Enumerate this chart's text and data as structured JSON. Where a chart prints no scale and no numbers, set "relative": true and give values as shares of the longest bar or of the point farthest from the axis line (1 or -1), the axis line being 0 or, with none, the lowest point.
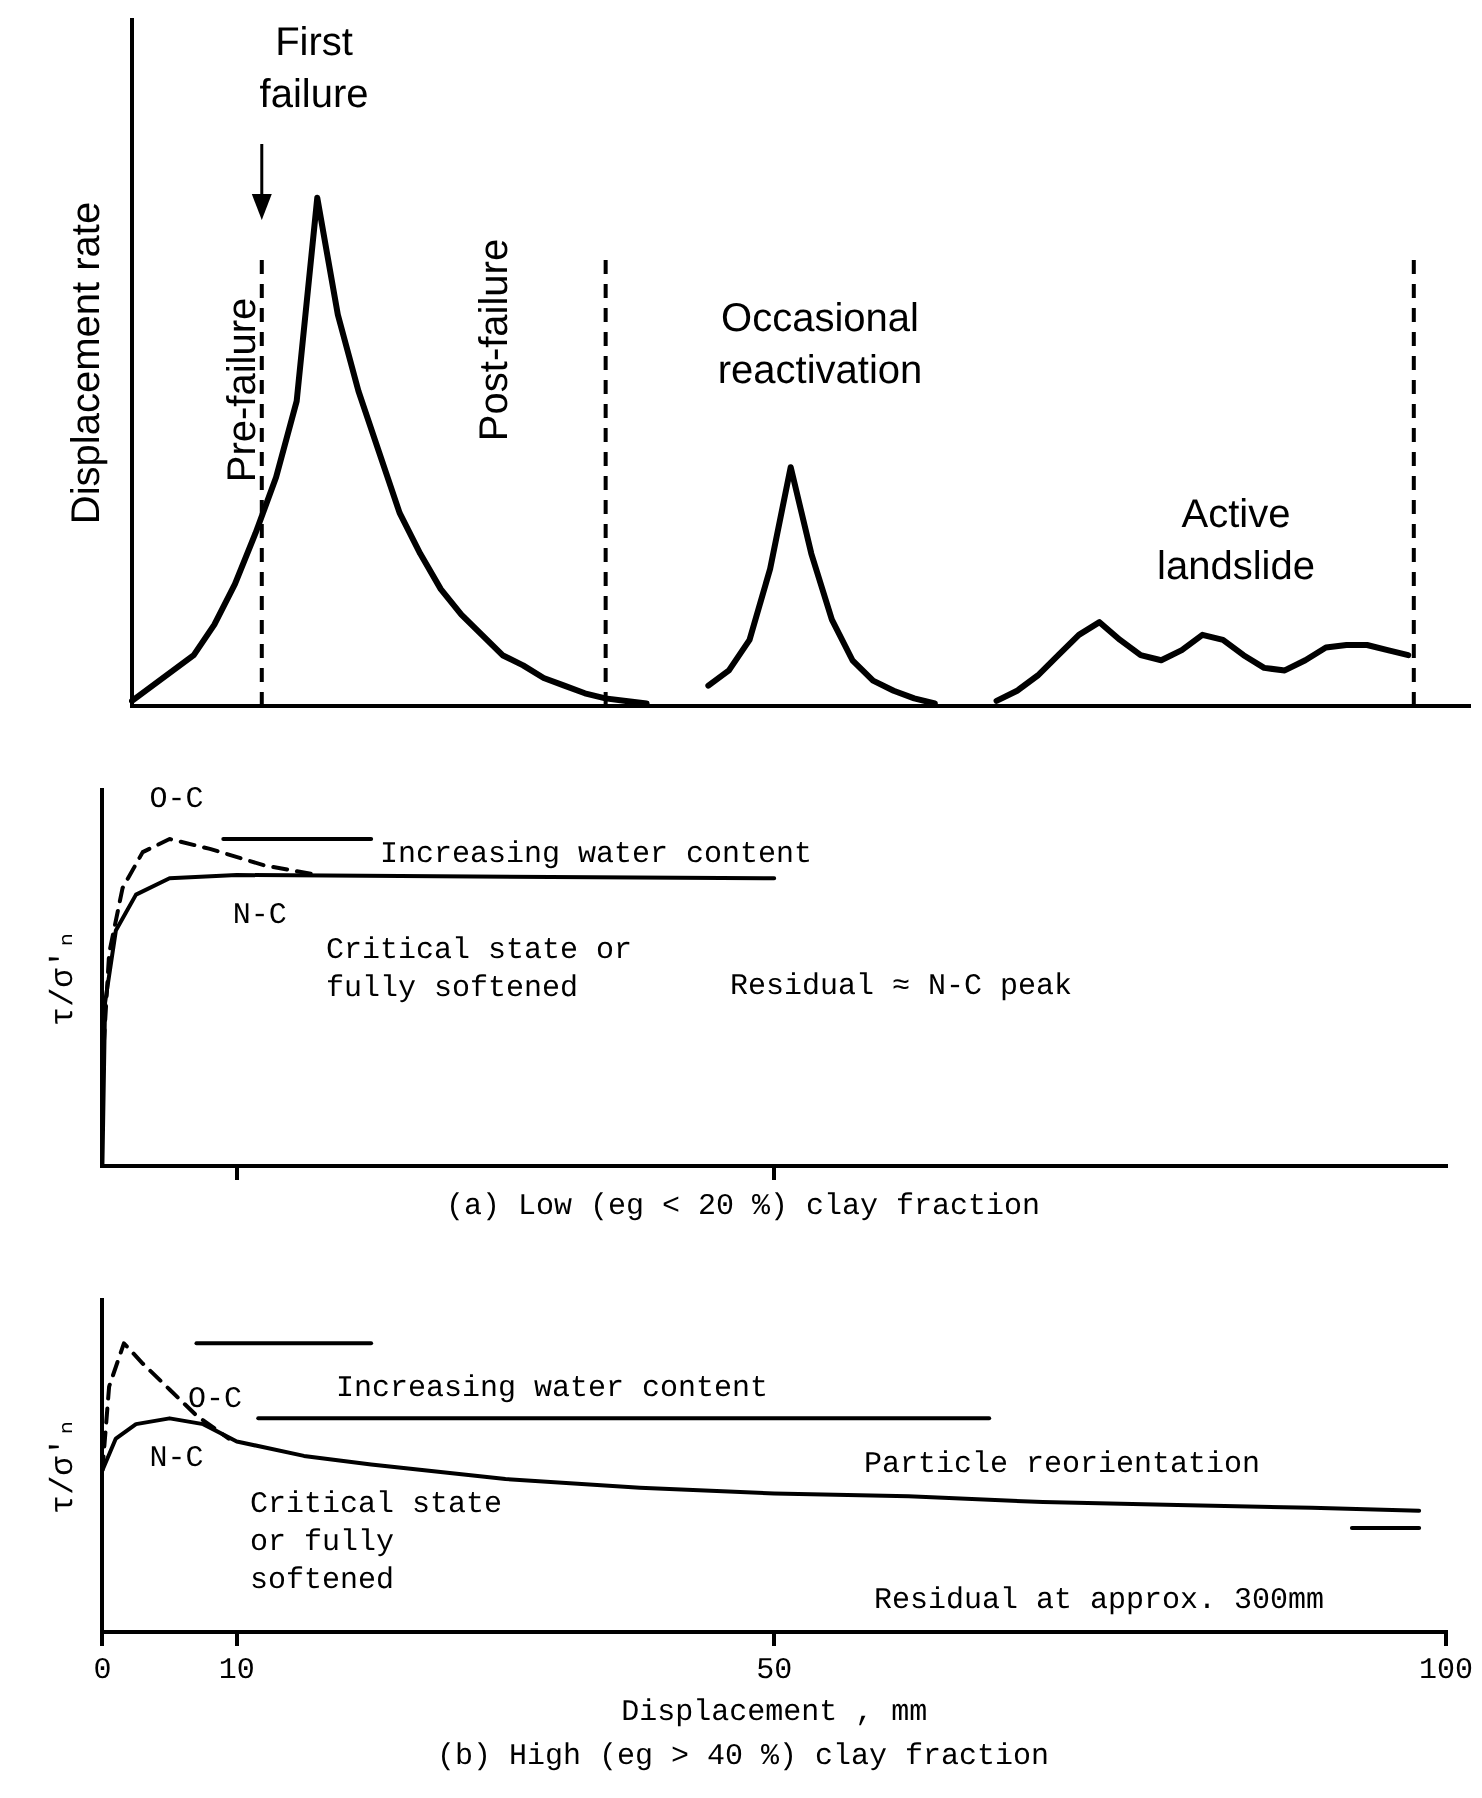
{
  "chart_data": [
    {
      "type": "line",
      "ylabel": "Displacement rate",
      "relative": true,
      "line_style": "solid",
      "marker": "none",
      "categories": [
        null,
        null,
        null,
        null,
        null,
        null,
        null,
        null,
        null,
        null,
        null,
        null,
        null,
        null,
        null,
        null,
        null,
        null,
        null,
        null,
        null,
        null,
        null,
        null,
        null,
        null,
        null,
        null,
        null,
        null,
        null,
        null,
        null,
        null,
        null,
        null,
        null,
        null,
        null,
        null,
        null,
        null,
        null,
        null,
        null,
        null,
        null,
        null,
        null,
        null,
        null,
        null,
        null,
        null,
        null,
        null,
        null,
        null,
        null,
        null,
        null,
        null,
        null,
        null,
        null,
        null
      ],
      "series": [
        {
          "color": "#000000",
          "values": [
            0.01,
            0.04,
            0.07,
            0.1,
            0.16,
            0.24,
            0.34,
            0.45,
            0.6,
            1.0,
            0.77,
            0.62,
            0.5,
            0.38,
            0.3,
            0.23,
            0.18,
            0.14,
            0.1,
            0.08,
            0.055,
            0.04,
            0.025,
            0.015,
            0.01,
            0.005,
            null,
            null,
            null,
            null,
            null,
            null,
            null,
            null,
            null,
            null,
            null,
            null,
            null,
            null,
            null,
            null,
            null,
            null,
            null,
            null,
            null,
            null,
            null,
            null,
            null,
            null,
            null,
            null,
            null,
            null,
            null,
            null,
            null,
            null,
            null,
            null,
            null,
            null,
            null,
            null
          ]
        },
        {
          "color": "#000000",
          "values": [
            null,
            null,
            null,
            null,
            null,
            null,
            null,
            null,
            null,
            null,
            null,
            null,
            null,
            null,
            null,
            null,
            null,
            null,
            null,
            null,
            null,
            null,
            null,
            null,
            null,
            null,
            null,
            null,
            0.04,
            0.07,
            0.13,
            0.27,
            0.47,
            0.3,
            0.17,
            0.09,
            0.05,
            0.03,
            0.015,
            0.005,
            null,
            null,
            null,
            null,
            null,
            null,
            null,
            null,
            null,
            null,
            null,
            null,
            null,
            null,
            null,
            null,
            null,
            null,
            null,
            null,
            null,
            null,
            null,
            null,
            null,
            null
          ]
        },
        {
          "color": "#000000",
          "values": [
            null,
            null,
            null,
            null,
            null,
            null,
            null,
            null,
            null,
            null,
            null,
            null,
            null,
            null,
            null,
            null,
            null,
            null,
            null,
            null,
            null,
            null,
            null,
            null,
            null,
            null,
            null,
            null,
            null,
            null,
            null,
            null,
            null,
            null,
            null,
            null,
            null,
            null,
            null,
            null,
            null,
            null,
            0.01,
            0.03,
            0.06,
            0.1,
            0.14,
            0.165,
            0.13,
            0.1,
            0.09,
            0.11,
            0.14,
            0.13,
            0.1,
            0.075,
            0.07,
            0.09,
            0.115,
            0.12,
            0.12,
            0.11,
            0.1,
            null,
            null,
            null
          ]
        }
      ],
      "annotations": [
        "First failure",
        "Pre-failure",
        "Post-failure",
        "Occasional reactivation",
        "Active landslide"
      ]
    },
    {
      "type": "line",
      "title": "(a) Low (eg < 20 %) clay fraction",
      "ylabel": "τ/σ′ₙ",
      "relative": true,
      "line_style": "solid",
      "marker": "none",
      "tick_labels": false,
      "xlim": [
        0,
        100
      ],
      "xticks": [
        {
          "value": 10,
          "label": null
        },
        {
          "value": 50,
          "label": null
        }
      ],
      "series": [
        {
          "name": "O-C",
          "color": "#000000",
          "line_style": "dashed",
          "x": [
            0,
            0.5,
            1.5,
            3,
            5,
            8,
            12,
            16
          ],
          "values": [
            0.3,
            0.65,
            0.85,
            0.96,
            1,
            0.97,
            0.92,
            0.89
          ]
        },
        {
          "name": "N-C",
          "color": "#000000",
          "x": [
            0,
            0.2,
            1,
            2.5,
            5,
            10,
            50
          ],
          "values": [
            0,
            0.5,
            0.72,
            0.83,
            0.88,
            0.89,
            0.88
          ]
        },
        {
          "color": "#000000",
          "x": [
            9,
            20
          ],
          "values": [
            1,
            1
          ]
        }
      ],
      "annotations": [
        "Increasing water content",
        "Critical state or fully softened",
        "Residual ≈ N-C peak"
      ]
    },
    {
      "type": "line",
      "title": "(b) High (eg > 40 %) clay fraction",
      "xlabel": "Displacement , mm",
      "ylabel": "τ/σ′ₙ",
      "relative": true,
      "line_style": "solid",
      "marker": "none",
      "xlim": [
        0,
        100
      ],
      "xticks": [
        0,
        10,
        50,
        100
      ],
      "tick_labels": "x",
      "series": [
        {
          "name": "O-C",
          "color": "#000000",
          "line_style": "dashed",
          "x": [
            0,
            0.5,
            1.6,
            3,
            5,
            7,
            9.4
          ],
          "values": [
            0.56,
            0.85,
            1,
            0.93,
            0.84,
            0.75,
            0.67
          ]
        },
        {
          "name": "N-C",
          "color": "#000000",
          "x": [
            0,
            1,
            2.5,
            5,
            7.5,
            10,
            15,
            20,
            30,
            40,
            50,
            60,
            70,
            80,
            90,
            98
          ],
          "values": [
            0.56,
            0.67,
            0.72,
            0.74,
            0.72,
            0.66,
            0.61,
            0.58,
            0.53,
            0.5,
            0.48,
            0.47,
            0.45,
            0.44,
            0.43,
            0.42
          ]
        },
        {
          "color": "#000000",
          "x": [
            7,
            20
          ],
          "values": [
            1,
            1
          ]
        },
        {
          "color": "#000000",
          "x": [
            11.6,
            66
          ],
          "values": [
            0.74,
            0.74
          ]
        },
        {
          "color": "#000000",
          "x": [
            93,
            98
          ],
          "values": [
            0.36,
            0.36
          ]
        }
      ],
      "annotations": [
        "Increasing water content",
        "Particle reorientation",
        "Critical state or fully softened",
        "Residual at approx. 300mm"
      ]
    }
  ]
}
